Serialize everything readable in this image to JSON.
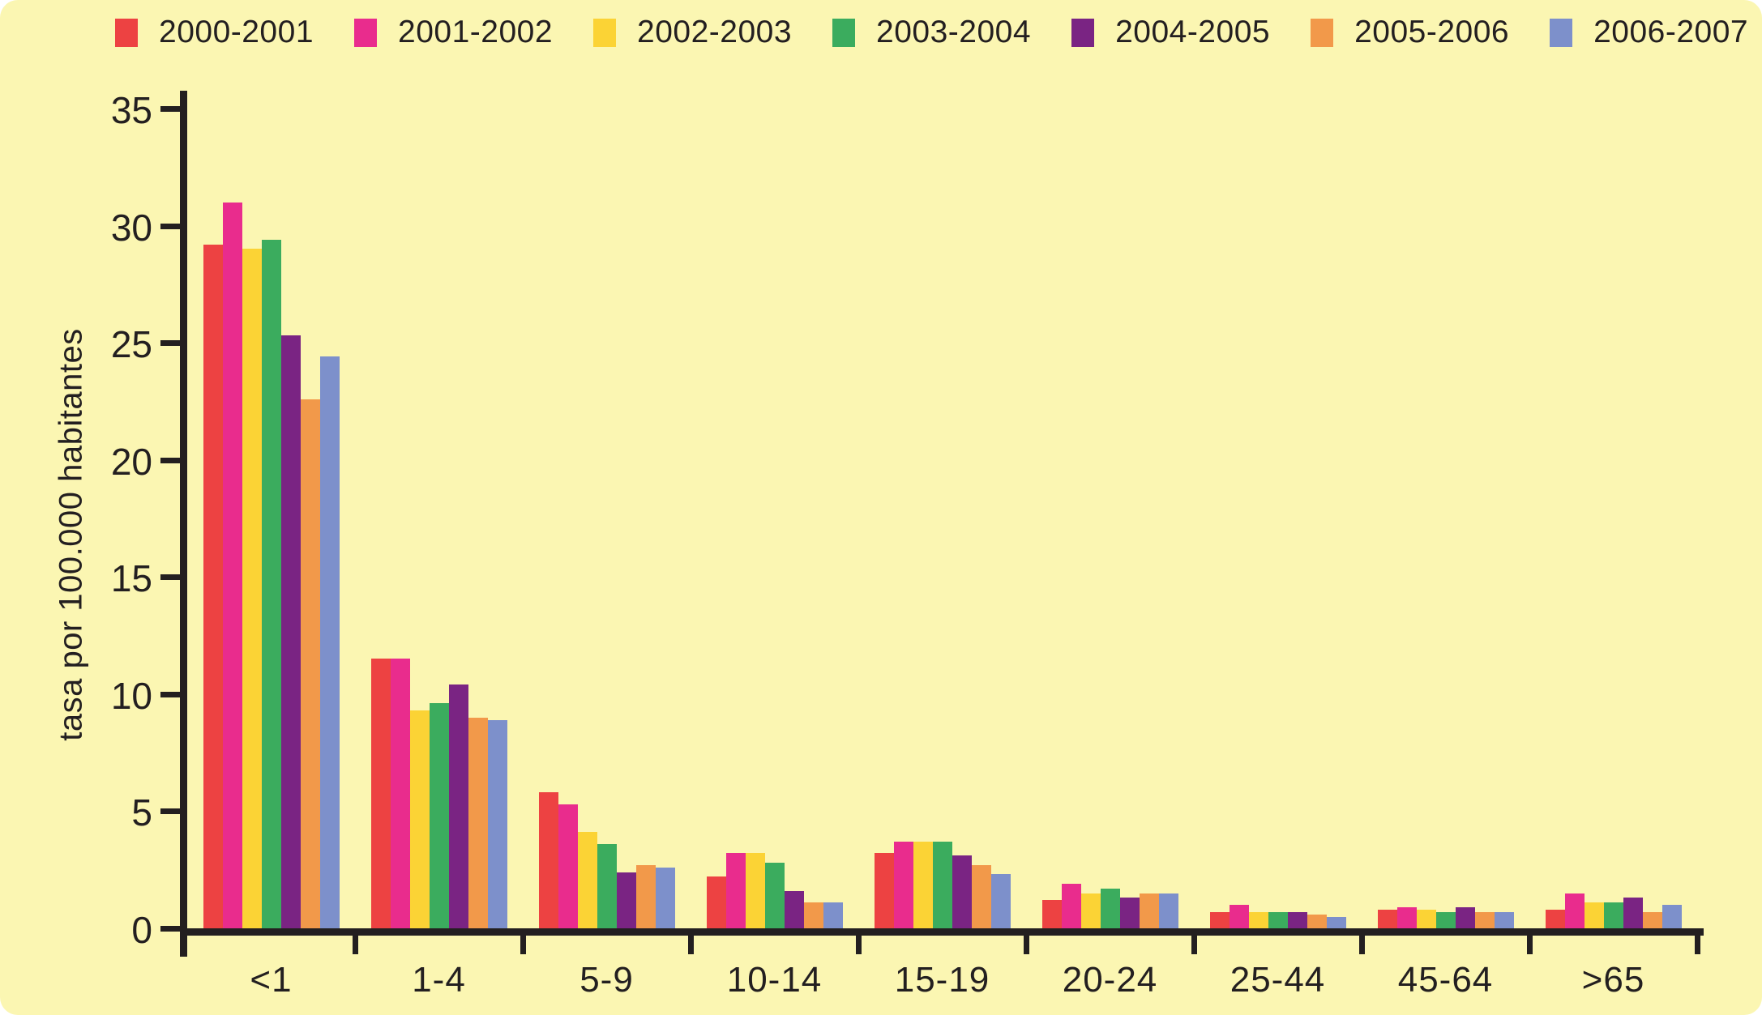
{
  "background": "#FBF6B2",
  "text_color": "#231F20",
  "axis_color": "#231F20",
  "chart_data": {
    "type": "bar",
    "title": "",
    "xlabel": "",
    "ylabel": "tasa por 100.000 habitantes",
    "ylim": [
      0,
      35
    ],
    "yticks": [
      0,
      5,
      10,
      15,
      20,
      25,
      30,
      35
    ],
    "grid": false,
    "legend_position": "top",
    "categories": [
      "<1",
      "1-4",
      "5-9",
      "10-14",
      "15-19",
      "20-24",
      "25-44",
      "45-64",
      ">65"
    ],
    "series": [
      {
        "name": "2000-2001",
        "color": "#ED4242",
        "values": [
          29.2,
          11.5,
          5.8,
          2.2,
          3.2,
          1.2,
          0.7,
          0.8,
          0.8
        ]
      },
      {
        "name": "2001-2002",
        "color": "#E92C8D",
        "values": [
          31.0,
          11.5,
          5.3,
          3.2,
          3.7,
          1.9,
          1.0,
          0.9,
          1.5
        ]
      },
      {
        "name": "2002-2003",
        "color": "#FBD335",
        "values": [
          29.0,
          9.3,
          4.1,
          3.2,
          3.7,
          1.5,
          0.7,
          0.8,
          1.1
        ]
      },
      {
        "name": "2003-2004",
        "color": "#3BAC5E",
        "values": [
          29.4,
          9.6,
          3.6,
          2.8,
          3.7,
          1.7,
          0.7,
          0.7,
          1.1
        ]
      },
      {
        "name": "2004-2005",
        "color": "#7A2483",
        "values": [
          25.3,
          10.4,
          2.4,
          1.6,
          3.1,
          1.3,
          0.7,
          0.9,
          1.3
        ]
      },
      {
        "name": "2005-2006",
        "color": "#F2994A",
        "values": [
          22.6,
          9.0,
          2.7,
          1.1,
          2.7,
          1.5,
          0.6,
          0.7,
          0.7
        ]
      },
      {
        "name": "2006-2007",
        "color": "#7D90CB",
        "values": [
          24.4,
          8.9,
          2.6,
          1.1,
          2.3,
          1.5,
          0.5,
          0.7,
          1.0
        ]
      }
    ]
  }
}
